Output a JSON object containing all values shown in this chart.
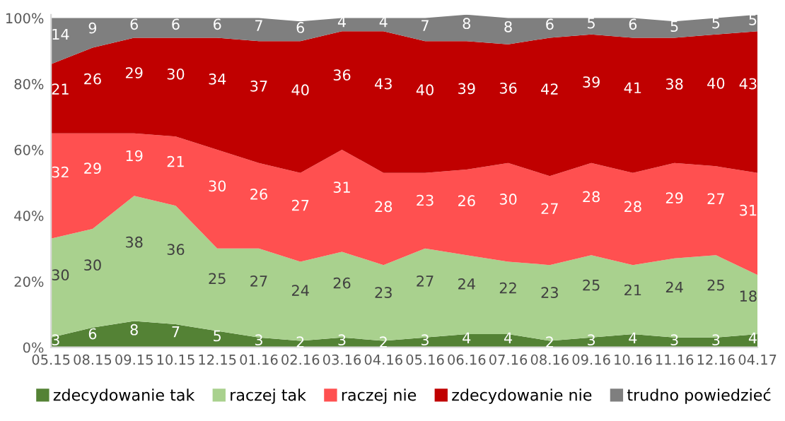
{
  "chart_data": {
    "type": "area",
    "stacked": true,
    "data_labels": true,
    "legend": "bottom",
    "grid": false,
    "categories": [
      "05.15",
      "08.15",
      "09.15",
      "10.15",
      "12.15",
      "01.16",
      "02.16",
      "03.16",
      "04.16",
      "05.16",
      "06.16",
      "07.16",
      "08.16",
      "09.16",
      "10.16",
      "11.16",
      "12.16",
      "04.17"
    ],
    "ylim": [
      0,
      101
    ],
    "yticks": [
      {
        "value": 0,
        "label": "0%"
      },
      {
        "value": 20,
        "label": "20%"
      },
      {
        "value": 40,
        "label": "40%"
      },
      {
        "value": 60,
        "label": "60%"
      },
      {
        "value": 80,
        "label": "80%"
      },
      {
        "value": 100,
        "label": "100%"
      }
    ],
    "series": [
      {
        "name": "zdecydowanie tak",
        "color": "#548235",
        "values": [
          3,
          6,
          8,
          7,
          5,
          3,
          2,
          3,
          2,
          3,
          4,
          4,
          2,
          3,
          4,
          3,
          3,
          4
        ]
      },
      {
        "name": "raczej tak",
        "color": "#a9d18e",
        "values": [
          30,
          30,
          38,
          36,
          25,
          27,
          24,
          26,
          23,
          27,
          24,
          22,
          23,
          25,
          21,
          24,
          25,
          18
        ]
      },
      {
        "name": "raczej nie",
        "color": "#ff5050",
        "values": [
          32,
          29,
          19,
          21,
          30,
          26,
          27,
          31,
          28,
          23,
          26,
          30,
          27,
          28,
          28,
          29,
          27,
          31
        ]
      },
      {
        "name": "zdecydowanie nie",
        "color": "#c00000",
        "values": [
          21,
          26,
          29,
          30,
          34,
          37,
          40,
          36,
          43,
          40,
          39,
          36,
          42,
          39,
          41,
          38,
          40,
          43
        ]
      },
      {
        "name": "trudno powiedzieć",
        "color": "#7f7f7f",
        "values": [
          14,
          9,
          6,
          6,
          6,
          7,
          6,
          4,
          4,
          7,
          8,
          8,
          6,
          5,
          6,
          5,
          5,
          5
        ]
      }
    ]
  }
}
